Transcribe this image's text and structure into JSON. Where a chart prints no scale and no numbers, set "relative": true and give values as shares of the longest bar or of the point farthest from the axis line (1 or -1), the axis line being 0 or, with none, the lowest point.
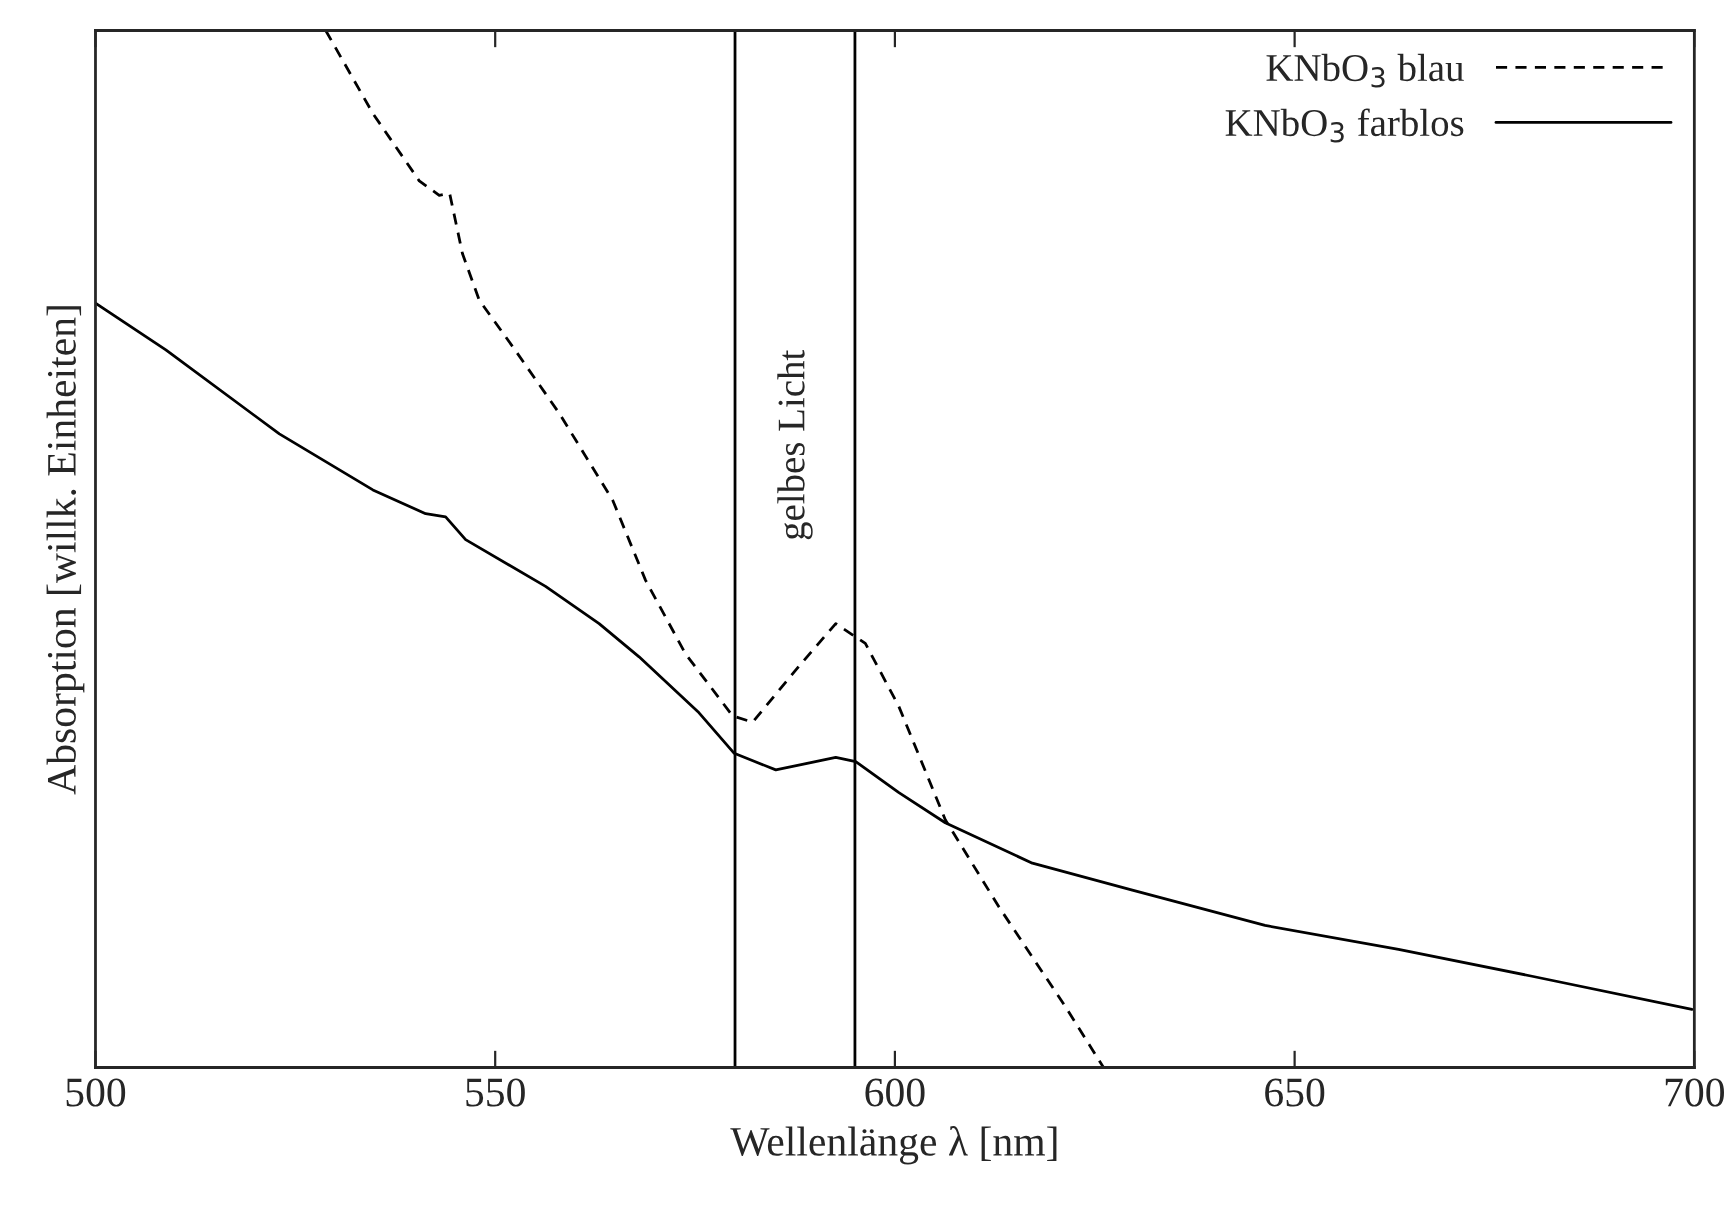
{
  "chart_data": {
    "type": "line",
    "xlabel": "Wellenlänge λ [nm]",
    "ylabel": "Absorption [willk. Einheiten]",
    "relative": true,
    "xlim": [
      500,
      700
    ],
    "xticks": [
      500,
      550,
      600,
      650,
      700
    ],
    "tick_labels": "x",
    "legend": "top right",
    "grid": false,
    "marker": "none",
    "series": [
      {
        "name": "KNbO$_{3}$ blau",
        "color": "#000000",
        "line_style": "dashed",
        "x": [
          528.8,
          534.7,
          540.5,
          543,
          544.3,
          545.9,
          548,
          552.2,
          558,
          564.7,
          568.8,
          573.8,
          579.7,
          582.2,
          588,
          592.6,
          596.3,
          600.5,
          606.3,
          613,
          621.3,
          626.1
        ],
        "values": [
          1.0,
          0.92,
          0.855,
          0.841,
          0.843,
          0.785,
          0.74,
          0.695,
          0.631,
          0.547,
          0.47,
          0.399,
          0.339,
          0.333,
          0.387,
          0.428,
          0.409,
          0.348,
          0.239,
          0.155,
          0.059,
          0.0
        ]
      },
      {
        "name": "KNbO$_{3}$ farblos",
        "color": "#000000",
        "line_style": "solid",
        "x": [
          500,
          508.8,
          523,
          534.7,
          541.3,
          543.8,
          546.3,
          556.3,
          563,
          568,
          575.5,
          579.9,
          585.1,
          592.6,
          595.1,
          600.5,
          606.3,
          617.2,
          629.7,
          646.3,
          663,
          679.7,
          699.7
        ],
        "values": [
          0.737,
          0.692,
          0.611,
          0.557,
          0.534,
          0.531,
          0.509,
          0.464,
          0.428,
          0.396,
          0.342,
          0.303,
          0.287,
          0.299,
          0.295,
          0.265,
          0.236,
          0.197,
          0.171,
          0.137,
          0.114,
          0.088,
          0.056
        ]
      }
    ],
    "ref_lines": [
      {
        "axis": "x",
        "value": 580,
        "color": "#000000"
      },
      {
        "axis": "x",
        "value": 595,
        "color": "#000000"
      }
    ],
    "annotations": [
      "gelbes Licht"
    ]
  }
}
